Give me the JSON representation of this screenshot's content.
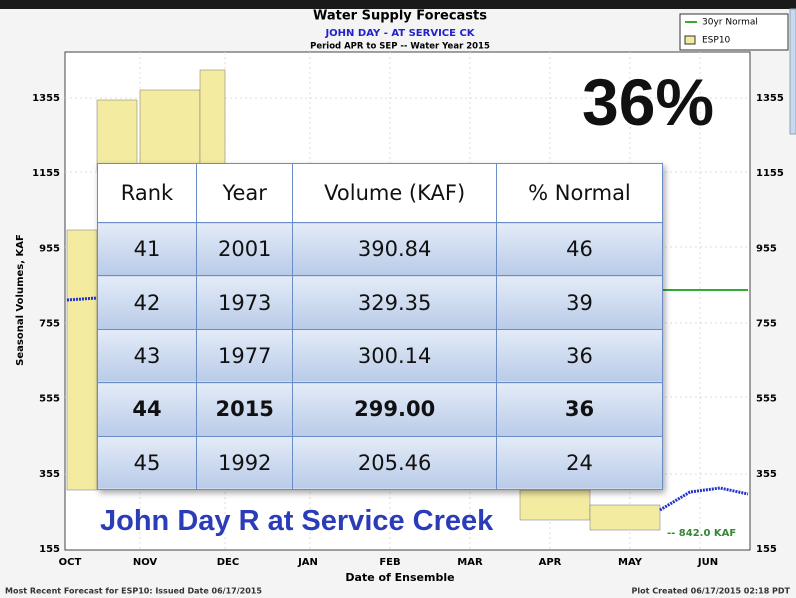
{
  "chart_header": {
    "title": "Water Supply Forecasts",
    "station": "JOHN DAY - AT SERVICE CK",
    "period": "Period  APR to SEP  -- Water Year 2015"
  },
  "legend": [
    "30yr Normal",
    "ESP10"
  ],
  "y_axis": {
    "label": "Seasonal Volumes, KAF",
    "ticks": [
      "1355",
      "1155",
      "955",
      "755",
      "555",
      "355",
      "155"
    ]
  },
  "x_axis": {
    "label": "Date of Ensemble",
    "ticks": [
      "OCT",
      "NOV",
      "DEC",
      "JAN",
      "FEB",
      "MAR",
      "APR",
      "MAY",
      "JUN"
    ]
  },
  "normal_label": "-- 842.0 KAF",
  "footer": {
    "left": "Most Recent Forecast for ESP10: Issued Date 06/17/2015",
    "right": "Plot Created 06/17/2015 02:18 PDT"
  },
  "percent": "36%",
  "site_name": "John Day R at Service Creek",
  "table": {
    "header": [
      "Rank",
      "Year",
      "Volume (KAF)",
      "% Normal"
    ],
    "rows": [
      [
        "41",
        "2001",
        "390.84",
        "46"
      ],
      [
        "42",
        "1973",
        "329.35",
        "39"
      ],
      [
        "43",
        "1977",
        "300.14",
        "36"
      ],
      [
        "44",
        "2015",
        "299.00",
        "36"
      ],
      [
        "45",
        "1992",
        "205.46",
        "24"
      ]
    ],
    "bold_row": 3
  }
}
